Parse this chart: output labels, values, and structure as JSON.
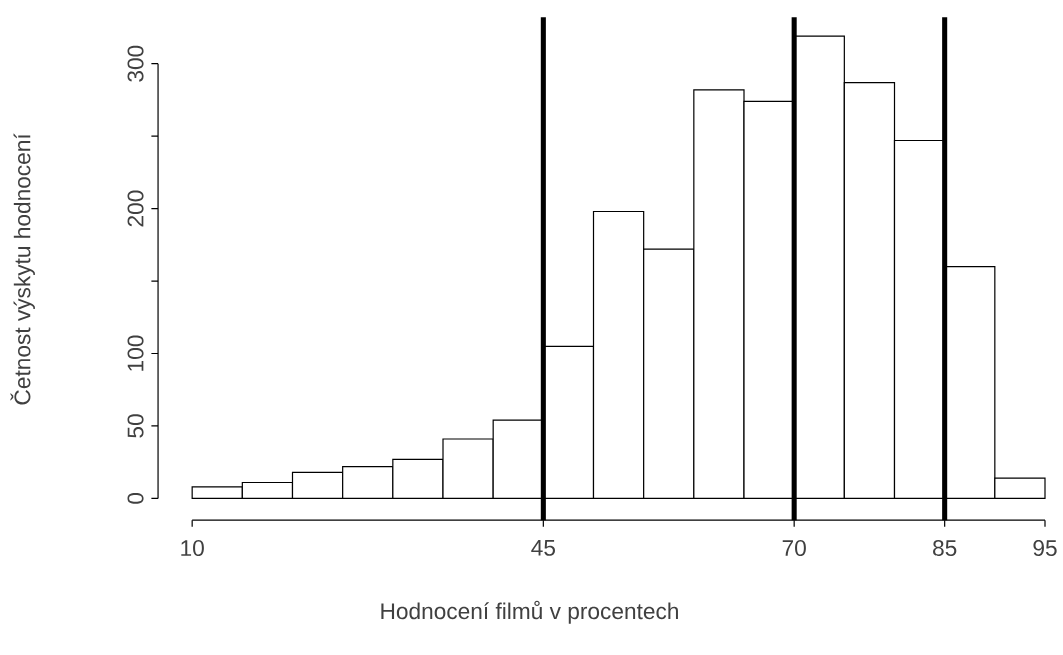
{
  "chart_data": {
    "type": "histogram",
    "xlabel": "Hodnocení filmů v procentech",
    "ylabel": "Četnost výskytu hodnocení",
    "bins": [
      10,
      15,
      20,
      25,
      30,
      35,
      40,
      45,
      50,
      55,
      60,
      65,
      70,
      75,
      80,
      85,
      90,
      95
    ],
    "values": [
      8,
      11,
      18,
      22,
      27,
      41,
      54,
      105,
      198,
      172,
      282,
      274,
      319,
      287,
      247,
      160,
      14
    ],
    "color": "#ffffff",
    "xlim": [
      6.6,
      95
    ],
    "ylim": [
      -15,
      332
    ],
    "xticks": [
      10,
      45,
      70,
      85,
      95
    ],
    "yticks": [
      0,
      50,
      100,
      {
        "value": 150,
        "label": null
      },
      200,
      {
        "value": 250,
        "label": null
      },
      300
    ],
    "ref_lines": [
      {
        "axis": "x",
        "value": 45,
        "color": "#000000"
      },
      {
        "axis": "x",
        "value": 70,
        "color": "#000000"
      },
      {
        "axis": "x",
        "value": 85,
        "color": "#000000"
      }
    ],
    "grid": false
  }
}
